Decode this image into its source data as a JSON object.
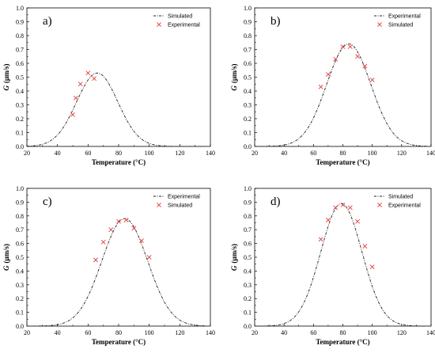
{
  "chart_data": [
    {
      "type": "line",
      "panel_label": "a)",
      "xlabel": "Temperature (°C)",
      "ylabel_var": "G",
      "ylabel_unit": "(μm/s)",
      "xlim": [
        20,
        140
      ],
      "ylim": [
        0,
        1.0
      ],
      "xticks": [
        "20",
        "40",
        "60",
        "80",
        "100",
        "120",
        "140"
      ],
      "yticks": [
        "0.0",
        "0.1",
        "0.2",
        "0.3",
        "0.4",
        "0.5",
        "0.6",
        "0.7",
        "0.8",
        "0.9",
        "1.0"
      ],
      "legend_position": "top-right",
      "series": [
        {
          "name": "Simulated",
          "kind": "curve",
          "peak_x": 66,
          "peak_y": 0.53,
          "width": 13.5
        },
        {
          "name": "Experimental",
          "kind": "points",
          "x": [
            50,
            52,
            55,
            60,
            64
          ],
          "y": [
            0.23,
            0.35,
            0.45,
            0.53,
            0.49
          ]
        }
      ]
    },
    {
      "type": "line",
      "panel_label": "b)",
      "xlabel": "Temperature (°C)",
      "ylabel_var": "G",
      "ylabel_unit": "(μm/s)",
      "xlim": [
        20,
        140
      ],
      "ylim": [
        0,
        1.0
      ],
      "xticks": [
        "20",
        "40",
        "60",
        "80",
        "100",
        "120",
        "140"
      ],
      "yticks": [
        "0.0",
        "0.1",
        "0.2",
        "0.3",
        "0.4",
        "0.5",
        "0.6",
        "0.7",
        "0.8",
        "0.9",
        "1.0"
      ],
      "legend_position": "top-right",
      "series": [
        {
          "name": "Experimental",
          "kind": "curve",
          "peak_x": 84,
          "peak_y": 0.74,
          "width": 15
        },
        {
          "name": "Simulated",
          "kind": "points",
          "x": [
            65,
            70,
            75,
            80,
            85,
            90,
            95,
            100
          ],
          "y": [
            0.43,
            0.52,
            0.63,
            0.72,
            0.72,
            0.65,
            0.58,
            0.48
          ]
        }
      ]
    },
    {
      "type": "line",
      "panel_label": "c)",
      "xlabel": "Temperature (°C)",
      "ylabel_var": "G",
      "ylabel_unit": "(μm/s)",
      "xlim": [
        20,
        140
      ],
      "ylim": [
        0,
        1.0
      ],
      "xticks": [
        "20",
        "40",
        "60",
        "80",
        "100",
        "120",
        "140"
      ],
      "yticks": [
        "0.0",
        "0.1",
        "0.2",
        "0.3",
        "0.4",
        "0.5",
        "0.6",
        "0.7",
        "0.8",
        "0.9",
        "1.0"
      ],
      "legend_position": "top-right",
      "series": [
        {
          "name": "Experimental",
          "kind": "curve",
          "peak_x": 84,
          "peak_y": 0.78,
          "width": 15
        },
        {
          "name": "Simulated",
          "kind": "points",
          "x": [
            65,
            70,
            75,
            80,
            85,
            90,
            95,
            100
          ],
          "y": [
            0.48,
            0.61,
            0.7,
            0.76,
            0.77,
            0.71,
            0.62,
            0.5
          ]
        }
      ]
    },
    {
      "type": "line",
      "panel_label": "d)",
      "xlabel": "Temperature (°C)",
      "ylabel_var": "G",
      "ylabel_unit": "(μm/s)",
      "xlim": [
        20,
        140
      ],
      "ylim": [
        0,
        1.0
      ],
      "xticks": [
        "20",
        "40",
        "60",
        "80",
        "100",
        "120",
        "140"
      ],
      "yticks": [
        "0.0",
        "0.1",
        "0.2",
        "0.3",
        "0.4",
        "0.5",
        "0.6",
        "0.7",
        "0.8",
        "0.9",
        "1.0"
      ],
      "legend_position": "top-right",
      "series": [
        {
          "name": "Simulated",
          "kind": "curve",
          "peak_x": 79,
          "peak_y": 0.89,
          "width": 14
        },
        {
          "name": "Experimental",
          "kind": "points",
          "x": [
            65,
            70,
            75,
            80,
            85,
            90,
            95,
            100
          ],
          "y": [
            0.63,
            0.77,
            0.86,
            0.88,
            0.86,
            0.76,
            0.58,
            0.43
          ]
        }
      ]
    }
  ]
}
